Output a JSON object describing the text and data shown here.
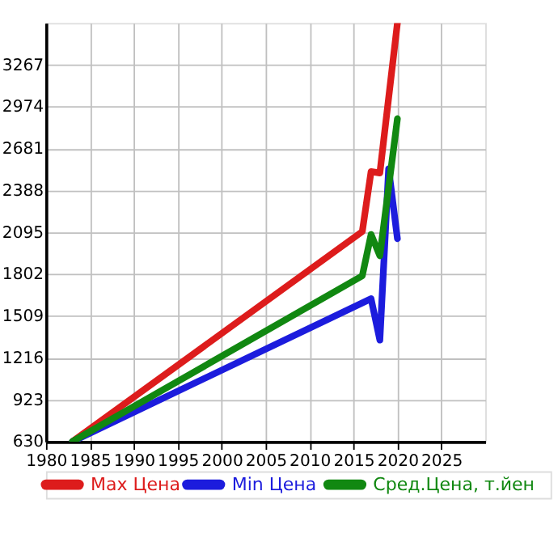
{
  "chart_data": {
    "type": "line",
    "xlim": [
      1980,
      2030
    ],
    "ylim": [
      630,
      3560
    ],
    "xticks": [
      1980,
      1985,
      1990,
      1995,
      2000,
      2005,
      2010,
      2015,
      2020,
      2025
    ],
    "yticks": [
      630,
      923,
      1216,
      1509,
      1802,
      2095,
      2388,
      2681,
      2974,
      3267
    ],
    "grid": true,
    "legend": "bottom",
    "line_style": "solid",
    "marker": "none",
    "series": [
      {
        "name": "Max Цена",
        "color": "#dd1c1c",
        "x": [
          1983,
          2016,
          2017,
          2018,
          2020
        ],
        "values": [
          630,
          2100,
          2520,
          2510,
          3560
        ]
      },
      {
        "name": "Min Цена",
        "color": "#1c1cdd",
        "x": [
          1983,
          2017,
          2018,
          2019,
          2020
        ],
        "values": [
          630,
          1630,
          1340,
          2540,
          2050
        ]
      },
      {
        "name": "Сред.Цена, т.йен",
        "color": "#118811",
        "x": [
          1983,
          2016,
          2017,
          2018,
          2020
        ],
        "values": [
          630,
          1790,
          2080,
          1930,
          2890
        ]
      }
    ]
  }
}
